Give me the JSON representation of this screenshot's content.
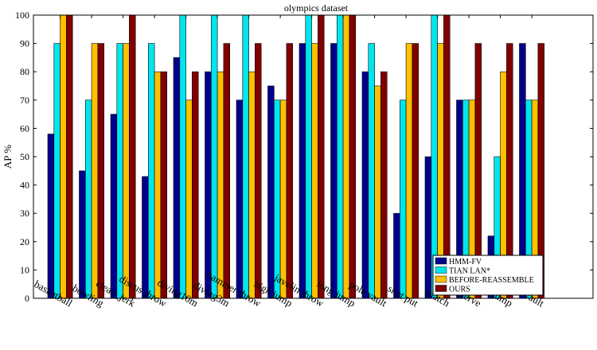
{
  "chart_data": {
    "type": "bar",
    "title": "olympics dataset",
    "xlabel": "",
    "ylabel": "AP %",
    "ylim": [
      0,
      100
    ],
    "yticks": [
      0,
      10,
      20,
      30,
      40,
      50,
      60,
      70,
      80,
      90,
      100
    ],
    "grid": false,
    "legend_position": "bottom-right",
    "categories": [
      "basketball",
      "bowling",
      "clean_jerk",
      "discus throw",
      "diving10m",
      "diving3m",
      "hammer throw",
      "high jump",
      "javelin throw",
      "long jump",
      "pole vault",
      "shot put",
      "snatch",
      "tennis_serve",
      "triple jump",
      "vault"
    ],
    "series": [
      {
        "name": "HMM-FV",
        "color": "#00008B",
        "values": [
          58,
          45,
          65,
          43,
          85,
          80,
          70,
          75,
          90,
          90,
          80,
          30,
          50,
          70,
          22,
          90
        ]
      },
      {
        "name": "TIAN LAN*",
        "color": "#00E5EE",
        "values": [
          90,
          70,
          90,
          90,
          100,
          100,
          100,
          70,
          100,
          100,
          90,
          70,
          100,
          70,
          50,
          70
        ]
      },
      {
        "name": "BEFORE-REASSEMBLE",
        "color": "#FFC000",
        "values": [
          100,
          90,
          90,
          80,
          70,
          80,
          80,
          70,
          90,
          100,
          75,
          90,
          90,
          70,
          80,
          70
        ]
      },
      {
        "name": "OURS",
        "color": "#800000",
        "values": [
          100,
          90,
          100,
          80,
          80,
          90,
          90,
          90,
          100,
          100,
          80,
          90,
          100,
          90,
          90,
          90
        ]
      }
    ]
  }
}
